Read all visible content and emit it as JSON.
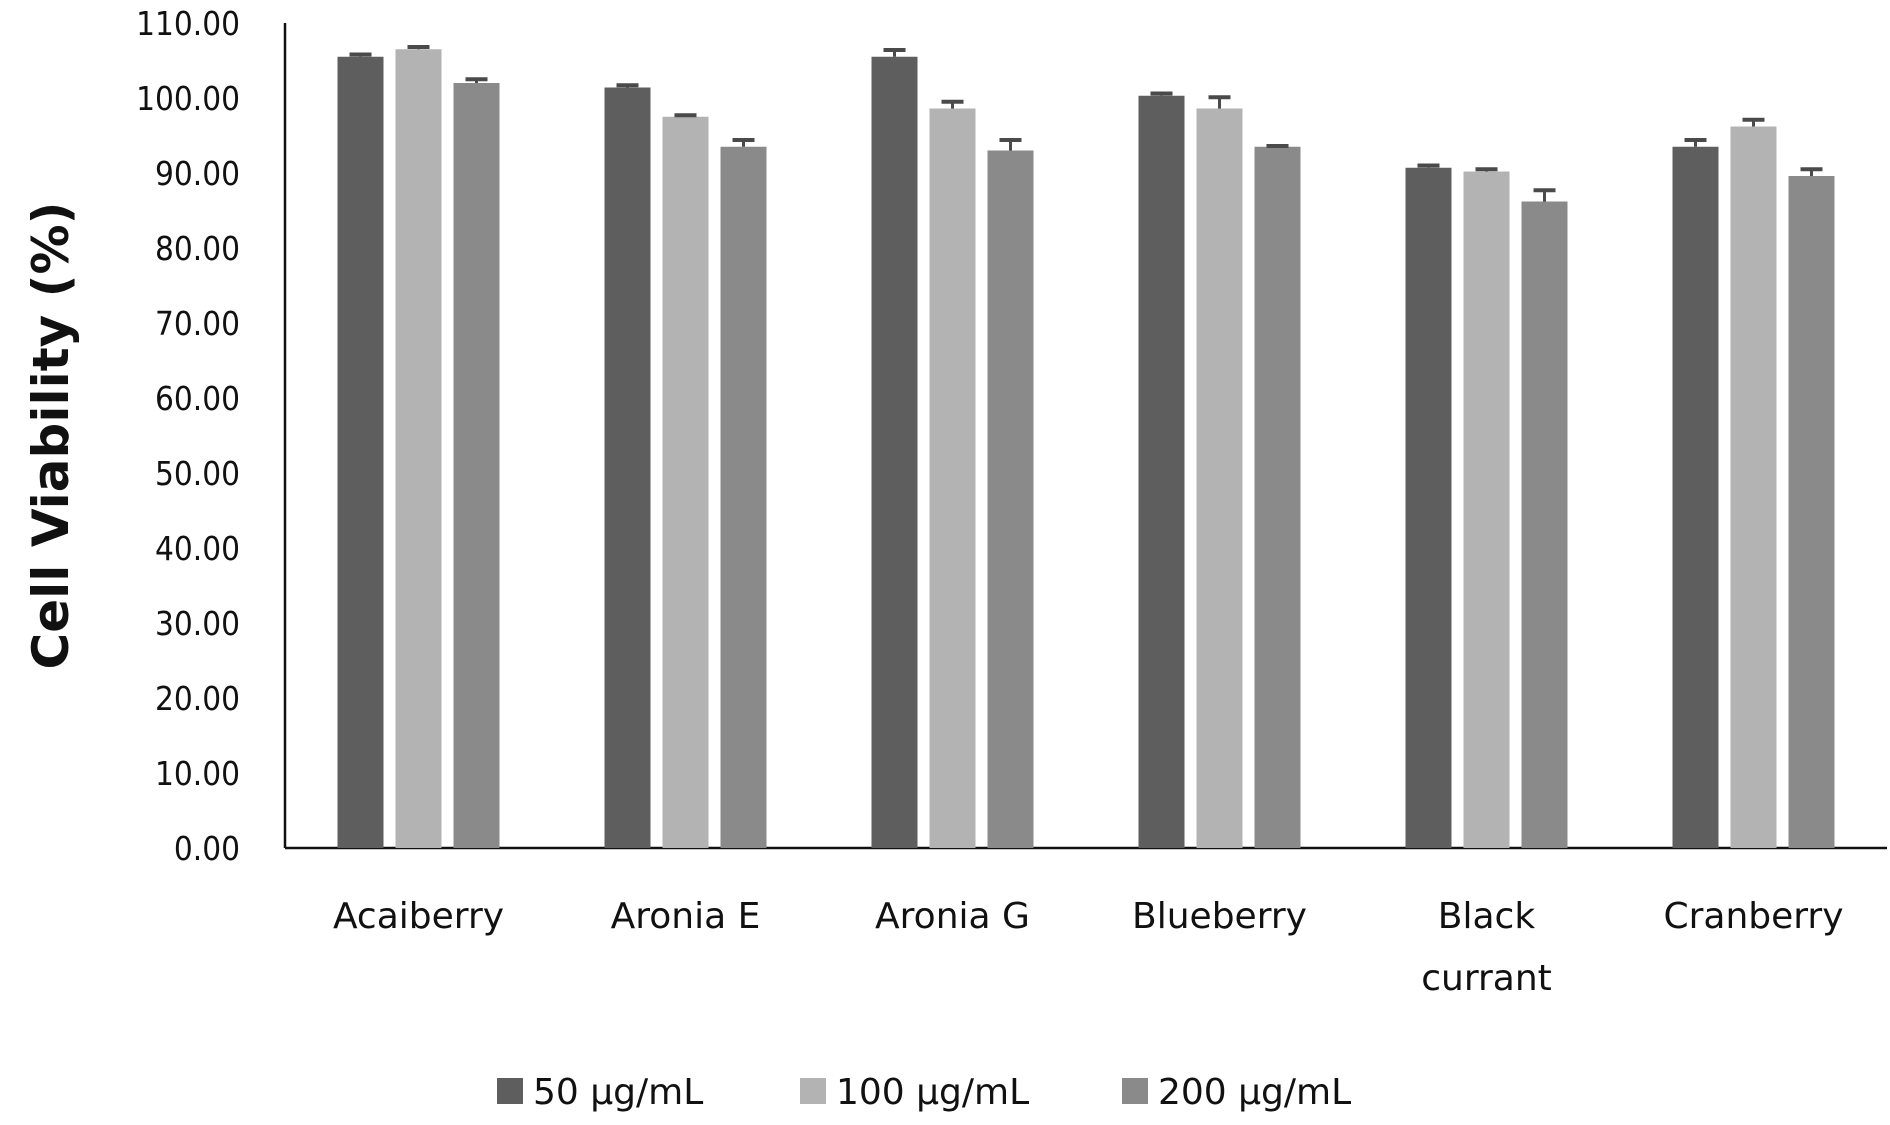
{
  "chart_data": {
    "type": "bar",
    "title": "",
    "xlabel": "",
    "ylabel": "Cell Viability (%)",
    "ylim": [
      0,
      110
    ],
    "yticks": [
      "0.00",
      "10.00",
      "20.00",
      "30.00",
      "40.00",
      "50.00",
      "60.00",
      "70.00",
      "80.00",
      "90.00",
      "100.00",
      "110.00"
    ],
    "grid": false,
    "legend_position": "bottom",
    "categories": [
      [
        "Acaiberry"
      ],
      [
        "Aronia E"
      ],
      [
        "Aronia G"
      ],
      [
        "Blueberry"
      ],
      [
        "Black",
        "currant"
      ],
      [
        "Cranberry"
      ]
    ],
    "series": [
      {
        "name": "50 µg/mL",
        "color": "#5e5e5e",
        "values": [
          105.5,
          101.4,
          105.5,
          100.3,
          90.7,
          93.5
        ],
        "errors": [
          0.3,
          0.3,
          0.9,
          0.3,
          0.3,
          0.9
        ]
      },
      {
        "name": "100 µg/mL",
        "color": "#b3b3b3",
        "values": [
          106.5,
          97.5,
          98.6,
          98.6,
          90.2,
          96.2
        ],
        "errors": [
          0.3,
          0.2,
          0.9,
          1.5,
          0.3,
          0.9
        ]
      },
      {
        "name": "200 µg/mL",
        "color": "#8a8a8a",
        "values": [
          102.0,
          93.5,
          93.0,
          93.5,
          86.2,
          89.6
        ],
        "errors": [
          0.5,
          0.9,
          1.4,
          0.1,
          1.5,
          0.9
        ]
      }
    ],
    "error_bar_color": "#4a4a4a"
  }
}
